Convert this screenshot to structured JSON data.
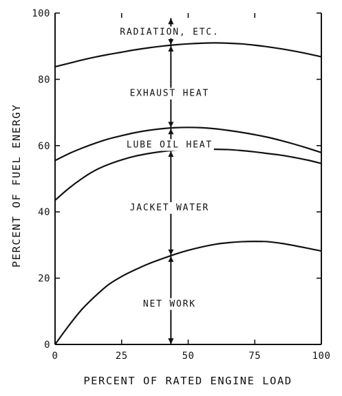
{
  "chart_data": {
    "type": "area",
    "xlabel": "PERCENT OF RATED ENGINE LOAD",
    "ylabel": "PERCENT OF FUEL ENERGY",
    "xlim": [
      0,
      100
    ],
    "ylim": [
      0,
      100
    ],
    "x_ticks": [
      "0",
      "25",
      "50",
      "75",
      "100"
    ],
    "y_ticks": [
      "0",
      "20",
      "40",
      "60",
      "80",
      "100"
    ],
    "x": [
      0,
      5,
      10,
      15,
      20,
      25,
      30,
      35,
      40,
      45,
      50,
      55,
      60,
      65,
      70,
      75,
      80,
      85,
      90,
      95,
      100
    ],
    "boundaries": [
      {
        "upper_region": "NET WORK",
        "values": [
          0,
          5.5,
          10.5,
          14.5,
          18,
          20.5,
          22.5,
          24.3,
          25.8,
          27.2,
          28.4,
          29.4,
          30.2,
          30.7,
          31,
          31.1,
          31,
          30.5,
          29.8,
          29,
          28.2
        ]
      },
      {
        "upper_region": "JACKET WATER",
        "values": [
          43.5,
          47,
          50,
          52.5,
          54.3,
          55.7,
          56.8,
          57.6,
          58.2,
          58.6,
          58.8,
          58.9,
          58.9,
          58.8,
          58.5,
          58.1,
          57.6,
          57.1,
          56.4,
          55.6,
          54.6
        ]
      },
      {
        "upper_region": "LUBE OIL HEAT",
        "values": [
          55.5,
          57.5,
          59.2,
          60.7,
          62,
          63,
          63.9,
          64.6,
          65.1,
          65.4,
          65.5,
          65.4,
          65.1,
          64.6,
          64,
          63.3,
          62.5,
          61.5,
          60.4,
          59.2,
          57.9
        ]
      },
      {
        "upper_region": "EXHAUST HEAT",
        "values": [
          83.8,
          84.8,
          85.8,
          86.7,
          87.5,
          88.2,
          88.9,
          89.5,
          90,
          90.4,
          90.7,
          90.9,
          91,
          90.9,
          90.7,
          90.3,
          89.8,
          89.2,
          88.5,
          87.7,
          86.8
        ]
      }
    ],
    "regions": [
      {
        "label": "RADIATION, ETC.",
        "x": 43,
        "y": 94.5
      },
      {
        "label": "EXHAUST HEAT",
        "x": 43,
        "y": 76
      },
      {
        "label": "LUBE OIL HEAT",
        "x": 43,
        "y": 60.5
      },
      {
        "label": "JACKET WATER",
        "x": 43,
        "y": 41.5
      },
      {
        "label": "NET WORK",
        "x": 43,
        "y": 12.5
      }
    ],
    "marker_x": 43.5,
    "grid": false
  }
}
